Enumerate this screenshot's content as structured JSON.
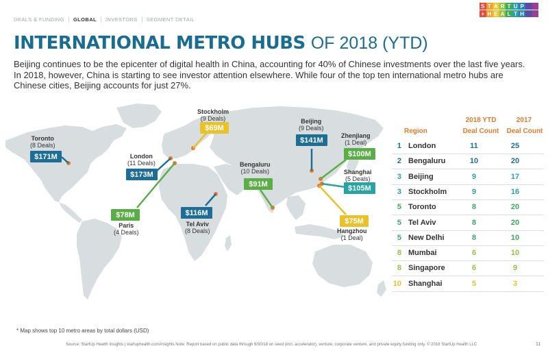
{
  "nav": {
    "tabs": [
      {
        "label": "DEALS & FUNDING",
        "active": false
      },
      {
        "label": "GLOBAL",
        "active": true
      },
      {
        "label": "INVESTORS",
        "active": false
      },
      {
        "label": "SEGMENT DETAIL",
        "active": false
      }
    ]
  },
  "logo": {
    "line1": [
      "S",
      "T",
      "A",
      "R",
      "T",
      "U",
      "P",
      "",
      ""
    ],
    "line2": [
      "+",
      "H",
      "E",
      "A",
      "L",
      "T",
      "H",
      "",
      ""
    ],
    "colors": [
      "#e84b3c",
      "#f39c2a",
      "#f4c430",
      "#8cc63f",
      "#3aaa5c",
      "#27a3a4",
      "#2a7fc1",
      "#5b4aa6",
      "#9b3f94"
    ]
  },
  "title": {
    "bold": "INTERNATIONAL METRO HUBS",
    "rest": "OF 2018 (YTD)"
  },
  "intro": "Beijing continues to be the epicenter of digital health in China, accounting for 40% of Chinese investments over the last five years. In 2018, however, China is starting to see investor attention elsewhere. While four of the top ten international metro hubs are Chinese cities, Beijing accounts for just 27%.",
  "map_cities": [
    {
      "name": "Toronto",
      "deals": "(8 Deals)",
      "amount": "$171M",
      "color": "#1d6e97"
    },
    {
      "name": "London",
      "deals": "(11 Deals)",
      "amount": "$173M",
      "color": "#1d6e97"
    },
    {
      "name": "Stockholm",
      "deals": "(9 Deals)",
      "amount": "$69M",
      "color": "#e8c22a"
    },
    {
      "name": "Paris",
      "deals": "(4 Deals)",
      "amount": "$78M",
      "color": "#5aae46"
    },
    {
      "name": "Tel Aviv",
      "deals": "(8 Deals)",
      "amount": "$116M",
      "color": "#1d6e97"
    },
    {
      "name": "Bengaluru",
      "deals": "(10 Deals)",
      "amount": "$91M",
      "color": "#5aae46"
    },
    {
      "name": "Beijing",
      "deals": "(9 Deals)",
      "amount": "$141M",
      "color": "#1d6e97"
    },
    {
      "name": "Zhenjiang",
      "deals": "(1 Deal)",
      "amount": "$100M",
      "color": "#5aae46"
    },
    {
      "name": "Shanghai",
      "deals": "(5 Deals)",
      "amount": "$105M",
      "color": "#27a3a4"
    },
    {
      "name": "Hangzhou",
      "deals": "(1 Deal)",
      "amount": "$75M",
      "color": "#e8c22a"
    }
  ],
  "table": {
    "header_2018": "2018 YTD",
    "header_2017": "2017",
    "col_region": "Region",
    "col_dealcount_a": "Deal Count",
    "col_dealcount_b": "Deal Count",
    "rows": [
      {
        "rank": "1",
        "region": "London",
        "ytd": "11",
        "prev": "25",
        "color": "#1d6e97"
      },
      {
        "rank": "2",
        "region": "Bengaluru",
        "ytd": "10",
        "prev": "20",
        "color": "#1d6e97"
      },
      {
        "rank": "3",
        "region": "Beijing",
        "ytd": "9",
        "prev": "17",
        "color": "#27a3a4"
      },
      {
        "rank": "3",
        "region": "Stockholm",
        "ytd": "9",
        "prev": "16",
        "color": "#27a3a4"
      },
      {
        "rank": "5",
        "region": "Toronto",
        "ytd": "8",
        "prev": "20",
        "color": "#3aaa5c"
      },
      {
        "rank": "5",
        "region": "Tel Aviv",
        "ytd": "8",
        "prev": "20",
        "color": "#3aaa5c"
      },
      {
        "rank": "5",
        "region": "New Delhi",
        "ytd": "8",
        "prev": "10",
        "color": "#3aaa5c"
      },
      {
        "rank": "8",
        "region": "Mumbai",
        "ytd": "6",
        "prev": "10",
        "color": "#8cc63f"
      },
      {
        "rank": "8",
        "region": "Singapore",
        "ytd": "6",
        "prev": "9",
        "color": "#8cc63f"
      },
      {
        "rank": "10",
        "region": "Shanghai",
        "ytd": "5",
        "prev": "3",
        "color": "#e8c22a"
      }
    ]
  },
  "footnote": "* Map shows top 10 metro areas by total dollars (USD)",
  "source": "Source: StartUp Health Insights | startuphealth.com/insights   Note: Report based on public data through 6/30/18 on seed (incl. accelerator), venture, corporate venture, and private equity funding only. © 2018 StartUp Health LLC",
  "page_number": "11",
  "colors": {
    "title": "#1a6d92",
    "orange": "#e57a2a",
    "blue": "#1d6e97",
    "green": "#5aae46",
    "yellow": "#e8c22a",
    "teal": "#27a3a4"
  }
}
